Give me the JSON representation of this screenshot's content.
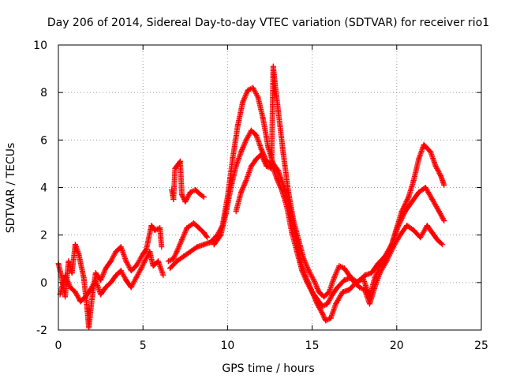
{
  "chart_data": {
    "type": "scatter",
    "title": "Day 206 of 2014, Sidereal Day-to-day VTEC variation (SDTVAR) for receiver rio1",
    "xlabel": "GPS time / hours",
    "ylabel": "SDTVAR / TECUs",
    "xlim": [
      0,
      25
    ],
    "ylim": [
      -2,
      10
    ],
    "xticks": [
      0,
      5,
      10,
      15,
      20,
      25
    ],
    "yticks": [
      -2,
      0,
      2,
      4,
      6,
      8,
      10
    ],
    "grid": true,
    "marker": "+",
    "color": "#ff0000",
    "series": [
      {
        "name": "trace-1",
        "points": [
          [
            0.0,
            0.8
          ],
          [
            0.2,
            0.2
          ],
          [
            0.4,
            -0.6
          ],
          [
            0.6,
            0.9
          ],
          [
            0.8,
            0.4
          ],
          [
            1.0,
            1.6
          ],
          [
            1.2,
            1.2
          ],
          [
            1.5,
            0.2
          ],
          [
            1.7,
            -1.1
          ],
          [
            1.8,
            -1.9
          ],
          [
            2.0,
            -0.6
          ],
          [
            2.2,
            0.4
          ],
          [
            2.5,
            0.1
          ],
          [
            2.8,
            0.6
          ],
          [
            3.1,
            0.9
          ],
          [
            3.4,
            1.3
          ],
          [
            3.7,
            1.5
          ],
          [
            4.0,
            0.9
          ],
          [
            4.3,
            0.5
          ],
          [
            4.6,
            0.7
          ],
          [
            5.0,
            1.2
          ],
          [
            5.2,
            1.4
          ],
          [
            5.5,
            2.4
          ],
          [
            5.7,
            2.2
          ],
          [
            6.0,
            2.3
          ],
          [
            6.1,
            1.5
          ]
        ]
      },
      {
        "name": "trace-2",
        "points": [
          [
            0.1,
            -0.5
          ],
          [
            0.4,
            0.3
          ],
          [
            0.7,
            -0.2
          ],
          [
            1.0,
            -0.4
          ],
          [
            1.3,
            -0.8
          ],
          [
            1.6,
            -0.6
          ],
          [
            1.9,
            -0.3
          ],
          [
            2.2,
            0.1
          ],
          [
            2.5,
            -0.5
          ],
          [
            2.8,
            -0.2
          ],
          [
            3.1,
            0.0
          ],
          [
            3.4,
            0.3
          ],
          [
            3.7,
            0.5
          ],
          [
            4.0,
            0.1
          ],
          [
            4.3,
            -0.2
          ],
          [
            4.6,
            0.2
          ],
          [
            4.9,
            0.6
          ],
          [
            5.1,
            0.9
          ],
          [
            5.4,
            1.3
          ],
          [
            5.6,
            0.7
          ],
          [
            5.9,
            0.9
          ],
          [
            6.2,
            0.3
          ]
        ]
      },
      {
        "name": "trace-3",
        "points": [
          [
            6.7,
            3.9
          ],
          [
            6.8,
            3.5
          ],
          [
            6.9,
            4.8
          ],
          [
            7.0,
            4.9
          ],
          [
            7.2,
            5.1
          ],
          [
            7.3,
            3.7
          ],
          [
            7.5,
            3.4
          ],
          [
            7.8,
            3.8
          ],
          [
            8.1,
            3.9
          ],
          [
            8.4,
            3.7
          ],
          [
            8.6,
            3.6
          ]
        ]
      },
      {
        "name": "trace-4",
        "points": [
          [
            6.5,
            0.9
          ],
          [
            6.8,
            1.0
          ],
          [
            7.0,
            1.3
          ],
          [
            7.3,
            1.8
          ],
          [
            7.6,
            2.3
          ],
          [
            8.0,
            2.5
          ],
          [
            8.3,
            2.3
          ],
          [
            8.6,
            2.1
          ],
          [
            8.8,
            1.9
          ]
        ]
      },
      {
        "name": "trace-5",
        "points": [
          [
            6.6,
            0.6
          ],
          [
            7.0,
            0.9
          ],
          [
            7.4,
            1.1
          ],
          [
            7.8,
            1.3
          ],
          [
            8.2,
            1.5
          ],
          [
            8.6,
            1.6
          ],
          [
            9.0,
            1.7
          ],
          [
            9.4,
            2.0
          ],
          [
            9.7,
            2.4
          ],
          [
            10.0,
            3.6
          ],
          [
            10.3,
            5.2
          ],
          [
            10.6,
            6.6
          ],
          [
            10.9,
            7.6
          ],
          [
            11.2,
            8.1
          ],
          [
            11.5,
            8.2
          ],
          [
            11.8,
            7.8
          ],
          [
            12.1,
            6.9
          ],
          [
            12.4,
            5.7
          ],
          [
            12.7,
            5.0
          ],
          [
            13.0,
            4.7
          ],
          [
            13.3,
            4.1
          ],
          [
            13.6,
            3.4
          ],
          [
            14.0,
            2.0
          ],
          [
            14.3,
            0.9
          ],
          [
            14.6,
            0.3
          ],
          [
            15.0,
            -0.4
          ],
          [
            15.3,
            -0.9
          ],
          [
            15.6,
            -1.3
          ],
          [
            15.8,
            -1.6
          ],
          [
            16.1,
            -1.5
          ],
          [
            16.4,
            -0.9
          ],
          [
            16.8,
            -0.4
          ],
          [
            17.2,
            -0.3
          ],
          [
            17.6,
            0.0
          ],
          [
            18.0,
            0.2
          ],
          [
            18.4,
            -0.6
          ],
          [
            18.7,
            0.2
          ],
          [
            19.0,
            0.7
          ],
          [
            19.3,
            1.0
          ],
          [
            19.7,
            1.6
          ],
          [
            20.0,
            2.3
          ],
          [
            20.3,
            3.0
          ],
          [
            20.7,
            3.6
          ],
          [
            21.0,
            4.3
          ],
          [
            21.3,
            5.2
          ],
          [
            21.6,
            5.8
          ],
          [
            22.0,
            5.5
          ],
          [
            22.3,
            4.9
          ],
          [
            22.6,
            4.5
          ],
          [
            22.8,
            4.1
          ]
        ]
      },
      {
        "name": "trace-6",
        "points": [
          [
            9.2,
            1.6
          ],
          [
            9.6,
            2.0
          ],
          [
            9.9,
            2.9
          ],
          [
            10.2,
            4.0
          ],
          [
            10.5,
            4.9
          ],
          [
            10.8,
            5.5
          ],
          [
            11.1,
            6.0
          ],
          [
            11.4,
            6.4
          ],
          [
            11.7,
            6.2
          ],
          [
            12.0,
            5.6
          ],
          [
            12.3,
            5.1
          ],
          [
            12.6,
            5.0
          ],
          [
            12.9,
            4.4
          ],
          [
            13.2,
            3.9
          ],
          [
            13.5,
            3.2
          ],
          [
            13.8,
            2.1
          ],
          [
            14.1,
            1.3
          ],
          [
            14.4,
            0.5
          ],
          [
            14.7,
            0.0
          ],
          [
            15.0,
            -0.4
          ],
          [
            15.3,
            -0.7
          ],
          [
            15.6,
            -1.0
          ],
          [
            15.9,
            -0.9
          ],
          [
            16.2,
            -0.5
          ],
          [
            16.5,
            -0.2
          ],
          [
            16.9,
            0.1
          ],
          [
            17.3,
            0.2
          ],
          [
            17.7,
            0.0
          ],
          [
            18.1,
            0.3
          ],
          [
            18.5,
            0.4
          ],
          [
            18.9,
            0.8
          ],
          [
            19.3,
            1.1
          ],
          [
            19.7,
            1.6
          ],
          [
            20.1,
            2.4
          ],
          [
            20.5,
            3.0
          ],
          [
            20.9,
            3.4
          ],
          [
            21.3,
            3.8
          ],
          [
            21.7,
            4.0
          ],
          [
            22.1,
            3.5
          ],
          [
            22.5,
            3.0
          ],
          [
            22.8,
            2.6
          ]
        ]
      },
      {
        "name": "trace-7",
        "points": [
          [
            10.5,
            3.0
          ],
          [
            10.8,
            3.8
          ],
          [
            11.1,
            4.3
          ],
          [
            11.4,
            4.9
          ],
          [
            11.7,
            5.2
          ],
          [
            12.0,
            5.4
          ],
          [
            12.3,
            4.9
          ],
          [
            12.6,
            4.8
          ],
          [
            12.7,
            9.1
          ],
          [
            12.8,
            8.4
          ],
          [
            13.0,
            7.2
          ],
          [
            13.3,
            5.4
          ],
          [
            13.6,
            3.8
          ],
          [
            13.9,
            2.6
          ],
          [
            14.2,
            1.8
          ],
          [
            14.5,
            1.0
          ],
          [
            14.8,
            0.5
          ],
          [
            15.1,
            0.1
          ],
          [
            15.4,
            -0.4
          ],
          [
            15.7,
            -0.6
          ],
          [
            16.0,
            -0.4
          ],
          [
            16.3,
            0.2
          ],
          [
            16.6,
            0.7
          ],
          [
            16.9,
            0.6
          ],
          [
            17.2,
            0.3
          ],
          [
            17.5,
            0.0
          ],
          [
            17.8,
            -0.2
          ],
          [
            18.1,
            -0.3
          ],
          [
            18.4,
            -0.9
          ],
          [
            18.7,
            -0.2
          ],
          [
            19.0,
            0.4
          ],
          [
            19.4,
            0.9
          ],
          [
            19.8,
            1.5
          ],
          [
            20.2,
            2.0
          ],
          [
            20.6,
            2.4
          ],
          [
            21.0,
            2.2
          ],
          [
            21.4,
            1.9
          ],
          [
            21.8,
            2.4
          ],
          [
            22.1,
            2.1
          ],
          [
            22.4,
            1.8
          ],
          [
            22.7,
            1.6
          ]
        ]
      }
    ]
  }
}
